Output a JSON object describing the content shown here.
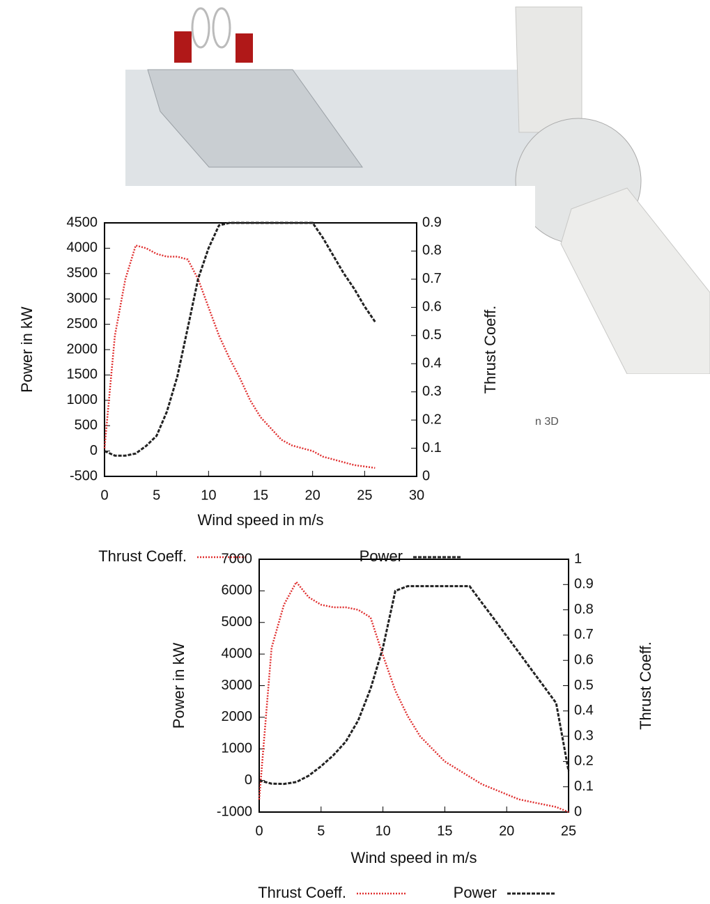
{
  "chart_data": [
    {
      "type": "line",
      "xlabel": "Wind speed in m/s",
      "ylabel": "Power in kW",
      "y2label": "Thrust Coeff.",
      "x": [
        0,
        1,
        2,
        3,
        4,
        5,
        6,
        7,
        8,
        9,
        10,
        11,
        12,
        13,
        14,
        15,
        16,
        17,
        18,
        19,
        20,
        21,
        22,
        23,
        24,
        25,
        26
      ],
      "series": [
        {
          "name": "Thrust Coeff.",
          "color": "#e03030",
          "axis": "y2",
          "values": [
            0.1,
            0.5,
            0.7,
            0.82,
            0.81,
            0.79,
            0.78,
            0.78,
            0.77,
            0.7,
            0.6,
            0.5,
            0.42,
            0.35,
            0.27,
            0.21,
            0.17,
            0.13,
            0.11,
            0.1,
            0.09,
            0.07,
            0.06,
            0.05,
            0.04,
            0.035,
            0.03
          ]
        },
        {
          "name": "Power",
          "color": "#222222",
          "values": [
            0,
            -90,
            -90,
            -50,
            100,
            300,
            780,
            1470,
            2430,
            3400,
            4000,
            4450,
            4500,
            4500,
            4500,
            4500,
            4500,
            4500,
            4500,
            4500,
            4500,
            4200,
            3850,
            3500,
            3200,
            2850,
            2550
          ]
        }
      ],
      "xlim": [
        0,
        30
      ],
      "xticks": [
        0,
        5,
        10,
        15,
        20,
        25,
        30
      ],
      "ylim": [
        -500,
        4500
      ],
      "yticks": [
        -500,
        0,
        500,
        1000,
        1500,
        2000,
        2500,
        3000,
        3500,
        4000,
        4500
      ],
      "y2lim": [
        0,
        0.9
      ],
      "y2ticks": [
        0,
        0.1,
        0.2,
        0.3,
        0.4,
        0.5,
        0.6,
        0.7,
        0.8,
        0.9
      ],
      "legend": "bottom"
    },
    {
      "type": "line",
      "xlabel": "Wind speed in m/s",
      "ylabel": "Power in kW",
      "y2label": "Thrust Coeff.",
      "x": [
        0,
        1,
        2,
        3,
        4,
        5,
        6,
        7,
        8,
        9,
        10,
        11,
        12,
        13,
        14,
        15,
        16,
        17,
        18,
        19,
        20,
        21,
        22,
        23,
        24,
        25
      ],
      "series": [
        {
          "name": "Thrust Coeff.",
          "color": "#e03030",
          "axis": "y2",
          "values": [
            0.05,
            0.65,
            0.82,
            0.91,
            0.85,
            0.82,
            0.81,
            0.81,
            0.8,
            0.77,
            0.62,
            0.48,
            0.38,
            0.3,
            0.25,
            0.2,
            0.17,
            0.14,
            0.11,
            0.09,
            0.07,
            0.05,
            0.04,
            0.03,
            0.02,
            0
          ]
        },
        {
          "name": "Power",
          "color": "#222222",
          "values": [
            0,
            -100,
            -110,
            -50,
            150,
            450,
            800,
            1230,
            1900,
            2900,
            4200,
            6000,
            6150,
            6150,
            6150,
            6150,
            6150,
            6150,
            5620,
            5100,
            4570,
            4040,
            3510,
            2980,
            2450,
            300
          ]
        }
      ],
      "xlim": [
        0,
        25
      ],
      "xticks": [
        0,
        5,
        10,
        15,
        20,
        25
      ],
      "ylim": [
        -1000,
        7000
      ],
      "yticks": [
        -1000,
        0,
        1000,
        2000,
        3000,
        4000,
        5000,
        6000,
        7000
      ],
      "y2lim": [
        0,
        1
      ],
      "y2ticks": [
        0,
        0.1,
        0.2,
        0.3,
        0.4,
        0.5,
        0.6,
        0.7,
        0.8,
        0.9,
        1
      ],
      "legend": "bottom"
    }
  ],
  "caption_fragment": "n 3D"
}
